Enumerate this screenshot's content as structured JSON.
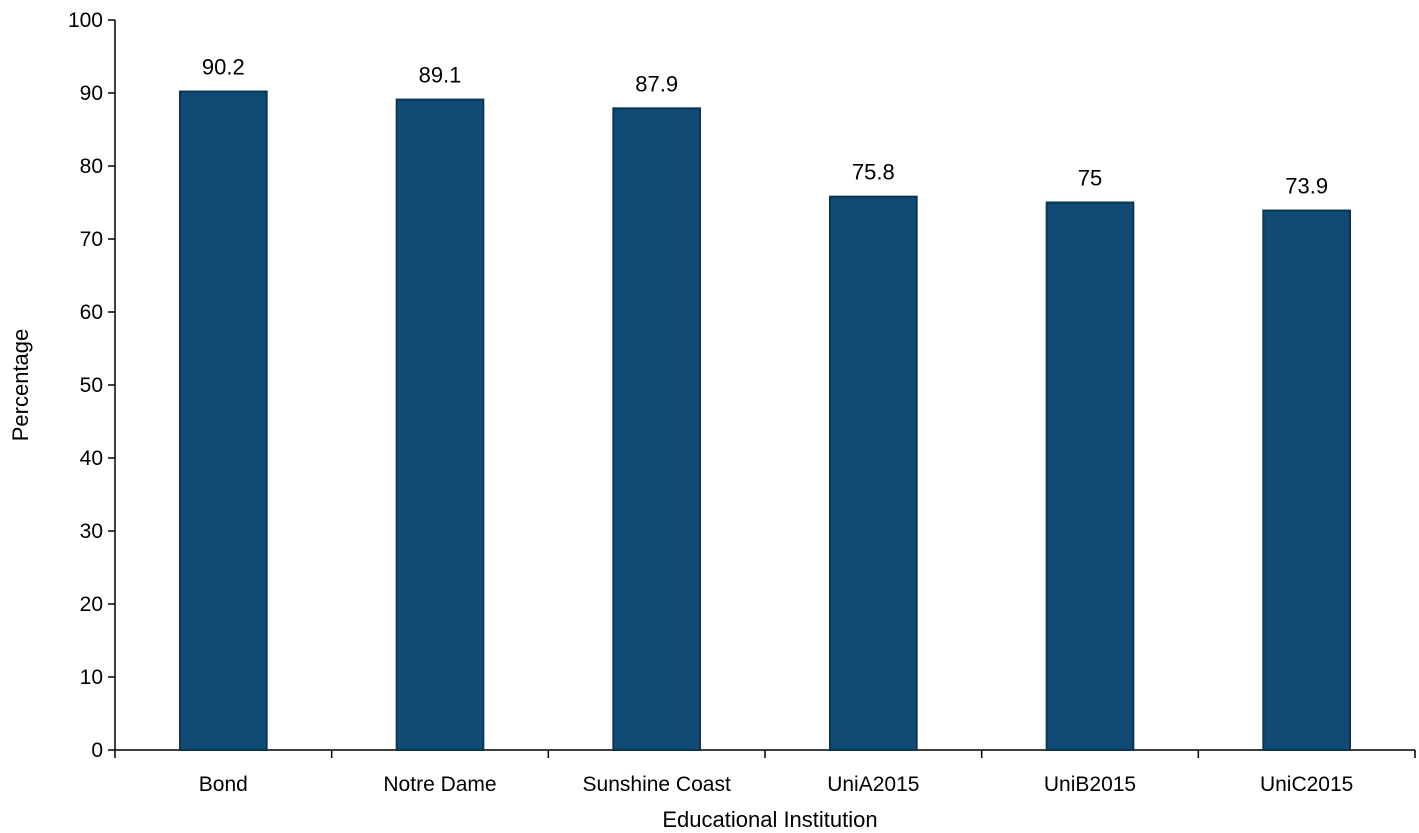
{
  "chart_data": {
    "type": "bar",
    "categories": [
      "Bond",
      "Notre Dame",
      "Sunshine Coast",
      "UniA2015",
      "UniB2015",
      "UniC2015"
    ],
    "values": [
      90.2,
      89.1,
      87.9,
      75.8,
      75,
      73.9
    ],
    "data_labels": [
      "90.2",
      "89.1",
      "87.9",
      "75.8",
      "75",
      "73.9"
    ],
    "xlabel": "Educational Institution",
    "ylabel": "Percentage",
    "ylim": [
      0,
      100
    ],
    "yticks": [
      0,
      10,
      20,
      30,
      40,
      50,
      60,
      70,
      80,
      90,
      100
    ],
    "grid": false,
    "legend": "none",
    "bar_color": "#0f4b74",
    "bar_edge_color": "#0a3553"
  }
}
